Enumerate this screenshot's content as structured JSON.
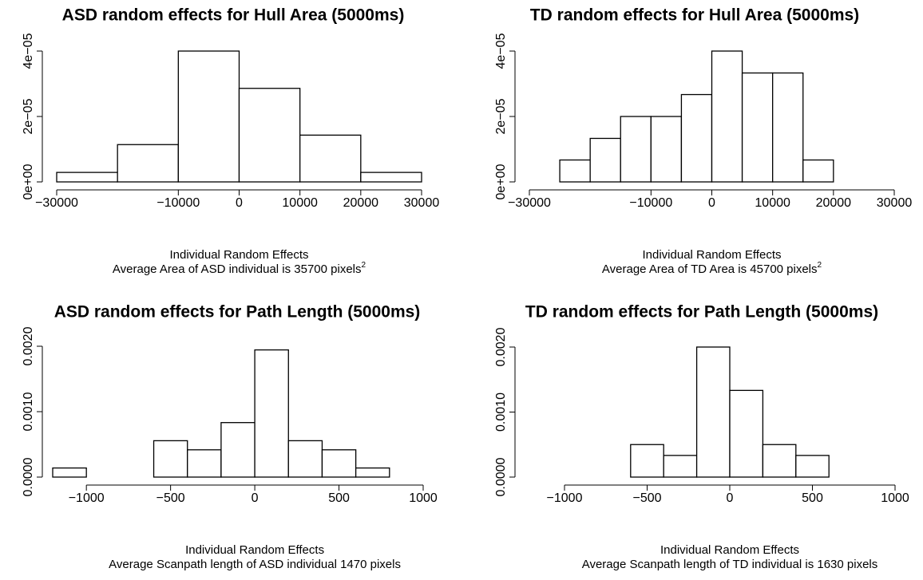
{
  "chart_data": [
    {
      "type": "histogram",
      "title": "ASD random effects for Hull Area (5000ms)",
      "xlabel": "Individual Random Effects",
      "subtitle": "Average Area of ASD individual is 35700 pixels",
      "subtitle_superscript": "2",
      "bins": [
        -30000,
        -20000,
        -10000,
        0,
        10000,
        20000,
        30000
      ],
      "values": [
        2.9e-06,
        1.14e-05,
        4e-05,
        2.86e-05,
        1.43e-05,
        2.9e-06
      ],
      "color": "#ffffff",
      "xlim": [
        -30000,
        30000
      ],
      "ylim": [
        0,
        4e-05
      ],
      "xticks": [
        {
          "value": -30000,
          "label": "−30000"
        },
        {
          "value": -10000,
          "label": "−10000"
        },
        0,
        10000,
        20000,
        30000
      ],
      "yticks": [
        {
          "value": 0,
          "label": "0e+00"
        },
        {
          "value": 2e-05,
          "label": "2e−05"
        },
        {
          "value": 4e-05,
          "label": "4e−05"
        }
      ]
    },
    {
      "type": "histogram",
      "title": "TD random effects for Hull Area (5000ms)",
      "xlabel": "Individual Random Effects",
      "subtitle": "Average Area of TD Area is 45700 pixels",
      "subtitle_superscript": "2",
      "bins": [
        -25000,
        -20000,
        -15000,
        -10000,
        -5000,
        0,
        5000,
        10000,
        15000,
        20000
      ],
      "values": [
        6.7e-06,
        1.33e-05,
        2e-05,
        2e-05,
        2.67e-05,
        4e-05,
        3.33e-05,
        3.33e-05,
        6.7e-06
      ],
      "color": "#ffffff",
      "xlim": [
        -30000,
        30000
      ],
      "ylim": [
        0,
        4e-05
      ],
      "xticks": [
        {
          "value": -30000,
          "label": "−30000"
        },
        {
          "value": -10000,
          "label": "−10000"
        },
        0,
        10000,
        20000,
        30000
      ],
      "yticks": [
        {
          "value": 0,
          "label": "0e+00"
        },
        {
          "value": 2e-05,
          "label": "2e−05"
        },
        {
          "value": 4e-05,
          "label": "4e−05"
        }
      ]
    },
    {
      "type": "histogram",
      "title": "ASD random effects for Path Length (5000ms)",
      "xlabel": "Individual Random Effects",
      "subtitle": "Average Scanpath length of ASD individual 1470 pixels",
      "bins": [
        -1200,
        -1000,
        -800,
        -600,
        -400,
        -200,
        0,
        200,
        400,
        600,
        800
      ],
      "values": [
        0.000139,
        0,
        0,
        0.000556,
        0.000417,
        0.000833,
        0.001944,
        0.000556,
        0.000417,
        0.000139
      ],
      "color": "#ffffff",
      "xlim": [
        -1200,
        1000
      ],
      "ylim": [
        0,
        0.002
      ],
      "xticks": [
        {
          "value": -1000,
          "label": "−1000"
        },
        {
          "value": -500,
          "label": "−500"
        },
        0,
        500,
        1000
      ],
      "yticks": [
        {
          "value": 0,
          "label": "0.0000"
        },
        {
          "value": 0.001,
          "label": "0.0010"
        },
        {
          "value": 0.002,
          "label": "0.0020"
        }
      ]
    },
    {
      "type": "histogram",
      "title": "TD random effects for Path Length (5000ms)",
      "xlabel": "Individual Random Effects",
      "subtitle": "Average Scanpath length of TD individual is 1630 pixels",
      "bins": [
        -600,
        -400,
        -200,
        0,
        200,
        400,
        600
      ],
      "values": [
        0.0005,
        0.000333,
        0.002,
        0.001333,
        0.0005,
        0.000333
      ],
      "color": "#ffffff",
      "xlim": [
        -1000,
        1000
      ],
      "ylim": [
        0,
        0.002
      ],
      "xticks": [
        {
          "value": -1000,
          "label": "−1000"
        },
        {
          "value": -500,
          "label": "−500"
        },
        0,
        500,
        1000
      ],
      "yticks": [
        {
          "value": 0,
          "label": "0.0000"
        },
        {
          "value": 0.001,
          "label": "0.0010"
        },
        {
          "value": 0.002,
          "label": "0.0020"
        }
      ]
    }
  ]
}
